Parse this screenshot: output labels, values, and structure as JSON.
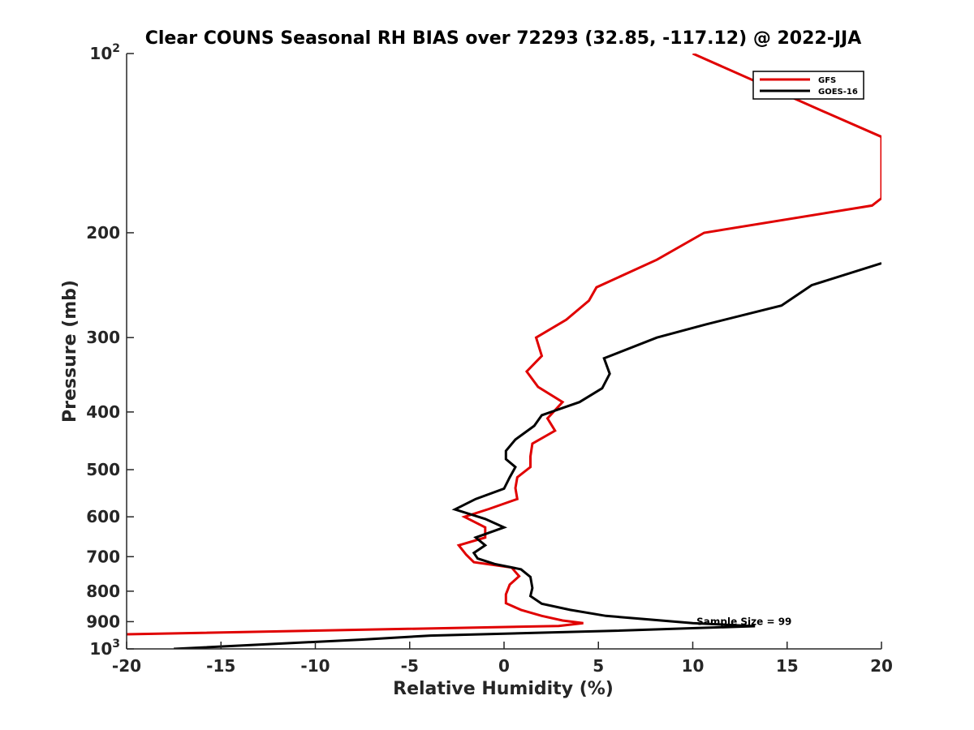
{
  "chart_data": {
    "type": "line",
    "title": "Clear COUNS Seasonal RH BIAS over 72293 (32.85, -117.12) @ 2022-JJA",
    "xlabel": "Relative Humidity (%)",
    "ylabel": "Pressure (mb)",
    "xlim": [
      -20,
      20
    ],
    "ylim": [
      100,
      1000
    ],
    "y_scale": "log",
    "y_reversed": true,
    "x_ticks": [
      "-20",
      "-15",
      "-10",
      "-5",
      "0",
      "5",
      "10",
      "15",
      "20"
    ],
    "y_ticks": [
      {
        "value": 100,
        "base": "10",
        "exp": "2"
      },
      {
        "value": 200,
        "label": "200"
      },
      {
        "value": 300,
        "label": "300"
      },
      {
        "value": 400,
        "label": "400"
      },
      {
        "value": 500,
        "label": "500"
      },
      {
        "value": 600,
        "label": "600"
      },
      {
        "value": 700,
        "label": "700"
      },
      {
        "value": 800,
        "label": "800"
      },
      {
        "value": 900,
        "label": "900"
      },
      {
        "value": 1000,
        "base": "10",
        "exp": "3"
      }
    ],
    "grid": false,
    "legend_position": "top-right",
    "annotation": {
      "text": "Sample Size = 99",
      "x": 10.2,
      "y": 900
    },
    "series": [
      {
        "name": "GFS",
        "color": "#e00000",
        "points": [
          [
            10.0,
            100
          ],
          [
            16.9,
            125
          ],
          [
            20.0,
            138
          ],
          [
            20.0,
            175
          ],
          [
            19.5,
            180
          ],
          [
            10.6,
            200
          ],
          [
            8.1,
            222
          ],
          [
            4.9,
            247
          ],
          [
            4.5,
            260
          ],
          [
            3.3,
            280
          ],
          [
            1.7,
            300
          ],
          [
            2.0,
            322
          ],
          [
            1.2,
            342
          ],
          [
            1.8,
            363
          ],
          [
            3.1,
            385
          ],
          [
            2.3,
            410
          ],
          [
            2.7,
            430
          ],
          [
            1.5,
            452
          ],
          [
            1.4,
            475
          ],
          [
            1.4,
            495
          ],
          [
            0.7,
            515
          ],
          [
            0.6,
            537
          ],
          [
            0.7,
            560
          ],
          [
            -0.8,
            582
          ],
          [
            -2.1,
            600
          ],
          [
            -1.0,
            625
          ],
          [
            -1.0,
            650
          ],
          [
            -2.4,
            670
          ],
          [
            -2.0,
            695
          ],
          [
            -1.6,
            715
          ],
          [
            0.4,
            730
          ],
          [
            0.8,
            755
          ],
          [
            0.3,
            780
          ],
          [
            0.1,
            810
          ],
          [
            0.1,
            838
          ],
          [
            0.9,
            860
          ],
          [
            2.0,
            880
          ],
          [
            3.1,
            896
          ],
          [
            4.2,
            905
          ],
          [
            2.9,
            915
          ],
          [
            -20.0,
            945
          ]
        ]
      },
      {
        "name": "GOES-16",
        "color": "#000000",
        "points": [
          [
            20.0,
            225
          ],
          [
            16.3,
            245
          ],
          [
            14.7,
            265
          ],
          [
            10.7,
            285
          ],
          [
            8.1,
            300
          ],
          [
            5.3,
            325
          ],
          [
            5.6,
            345
          ],
          [
            5.2,
            365
          ],
          [
            4.0,
            385
          ],
          [
            2.0,
            405
          ],
          [
            1.6,
            422
          ],
          [
            0.6,
            445
          ],
          [
            0.1,
            465
          ],
          [
            0.1,
            480
          ],
          [
            0.6,
            495
          ],
          [
            0.3,
            515
          ],
          [
            0.0,
            538
          ],
          [
            -1.5,
            560
          ],
          [
            -2.6,
            583
          ],
          [
            -1.0,
            605
          ],
          [
            0.0,
            625
          ],
          [
            -1.5,
            650
          ],
          [
            -1.0,
            670
          ],
          [
            -1.6,
            690
          ],
          [
            -1.4,
            705
          ],
          [
            -0.5,
            720
          ],
          [
            0.9,
            735
          ],
          [
            1.4,
            757
          ],
          [
            1.5,
            790
          ],
          [
            1.4,
            815
          ],
          [
            2.0,
            840
          ],
          [
            3.5,
            860
          ],
          [
            5.4,
            880
          ],
          [
            10.0,
            905
          ],
          [
            13.3,
            916
          ],
          [
            5.5,
            933
          ],
          [
            -3.9,
            950
          ],
          [
            -7.6,
            965
          ],
          [
            -17.5,
            1000
          ]
        ]
      }
    ]
  }
}
